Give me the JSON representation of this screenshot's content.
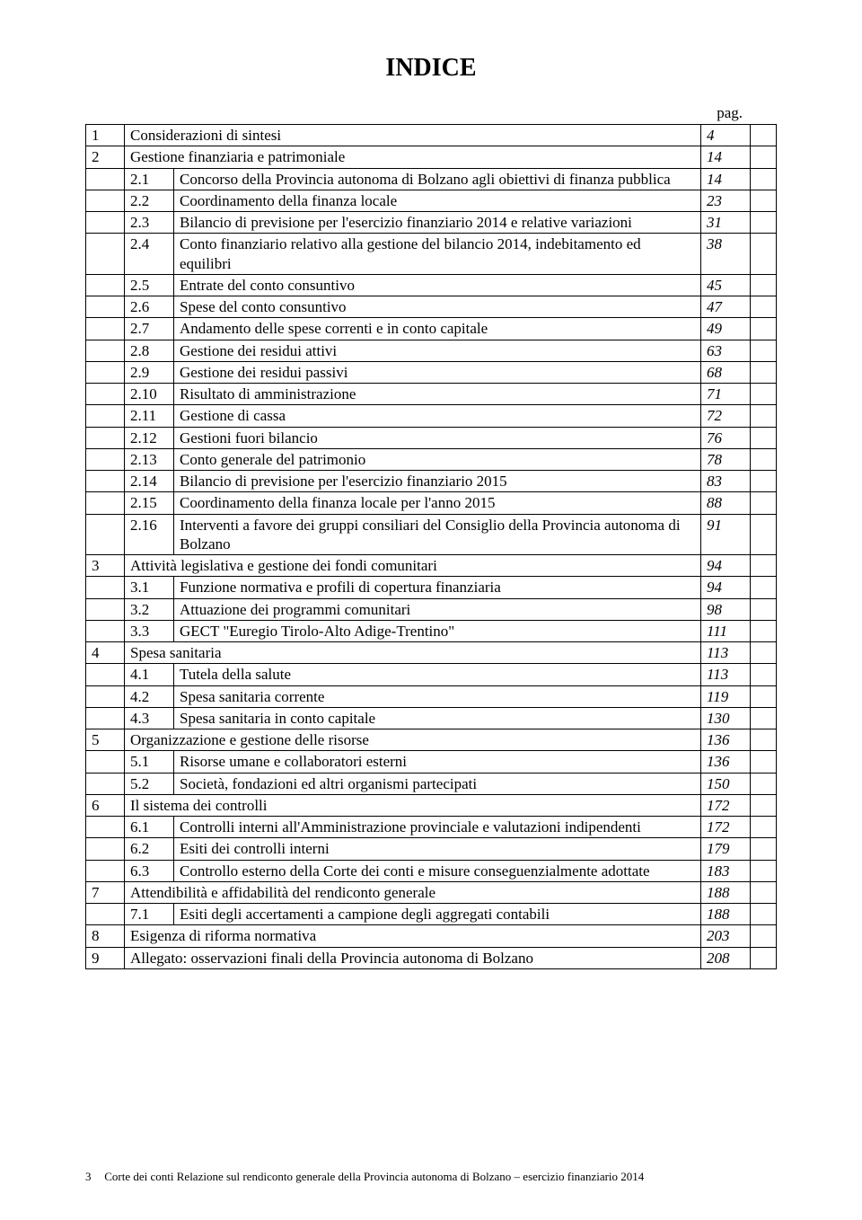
{
  "title": "INDICE",
  "pag_label": "pag.",
  "footer": {
    "page_number": "3",
    "text": "Corte dei conti   Relazione sul rendiconto generale della Provincia autonoma di Bolzano – esercizio finanziario 2014"
  },
  "rows": [
    {
      "type": "top",
      "n": "1",
      "label": "Considerazioni di sintesi",
      "page": "4"
    },
    {
      "type": "top",
      "n": "2",
      "label": "Gestione finanziaria e patrimoniale",
      "page": "14"
    },
    {
      "type": "sub",
      "n": "2.1",
      "label": "Concorso della Provincia autonoma di Bolzano agli obiettivi di finanza pubblica",
      "page": "14"
    },
    {
      "type": "sub",
      "n": "2.2",
      "label": "Coordinamento della finanza locale",
      "page": "23"
    },
    {
      "type": "sub",
      "n": "2.3",
      "label": "Bilancio di previsione per l'esercizio finanziario 2014 e relative variazioni",
      "page": "31"
    },
    {
      "type": "sub",
      "n": "2.4",
      "label": "Conto finanziario relativo alla gestione del bilancio 2014, indebitamento ed equilibri",
      "page": "38"
    },
    {
      "type": "sub",
      "n": "2.5",
      "label": "Entrate del conto consuntivo",
      "page": "45"
    },
    {
      "type": "sub",
      "n": "2.6",
      "label": "Spese del conto consuntivo",
      "page": "47"
    },
    {
      "type": "sub",
      "n": "2.7",
      "label": "Andamento delle spese correnti e in conto capitale",
      "page": "49"
    },
    {
      "type": "sub",
      "n": "2.8",
      "label": "Gestione dei residui attivi",
      "page": "63"
    },
    {
      "type": "sub",
      "n": "2.9",
      "label": "Gestione dei residui passivi",
      "page": "68"
    },
    {
      "type": "sub",
      "n": "2.10",
      "label": "Risultato di amministrazione",
      "page": "71"
    },
    {
      "type": "sub",
      "n": "2.11",
      "label": "Gestione di cassa",
      "page": "72"
    },
    {
      "type": "sub",
      "n": "2.12",
      "label": "Gestioni fuori bilancio",
      "page": "76"
    },
    {
      "type": "sub",
      "n": "2.13",
      "label": "Conto generale del patrimonio",
      "page": "78"
    },
    {
      "type": "sub",
      "n": "2.14",
      "label": "Bilancio di previsione per l'esercizio finanziario 2015",
      "page": "83"
    },
    {
      "type": "sub",
      "n": "2.15",
      "label": "Coordinamento della finanza locale  per l'anno 2015",
      "page": "88"
    },
    {
      "type": "sub",
      "n": "2.16",
      "label": "Interventi a favore dei gruppi consiliari del Consiglio della Provincia autonoma di Bolzano",
      "page": "91"
    },
    {
      "type": "top",
      "n": "3",
      "label": "Attività legislativa e gestione dei fondi comunitari",
      "page": "94"
    },
    {
      "type": "sub",
      "n": "3.1",
      "label": "Funzione normativa e profili di copertura finanziaria",
      "page": "94"
    },
    {
      "type": "sub",
      "n": "3.2",
      "label": "Attuazione dei programmi comunitari",
      "page": "98"
    },
    {
      "type": "sub",
      "n": "3.3",
      "label": "GECT \"Euregio Tirolo-Alto Adige-Trentino\"",
      "page": "111"
    },
    {
      "type": "top",
      "n": "4",
      "label": "Spesa sanitaria",
      "page": "113"
    },
    {
      "type": "sub",
      "n": "4.1",
      "label": "Tutela della salute",
      "page": "113"
    },
    {
      "type": "sub",
      "n": "4.2",
      "label": "Spesa sanitaria corrente",
      "page": "119"
    },
    {
      "type": "sub",
      "n": "4.3",
      "label": "Spesa sanitaria in conto capitale",
      "page": "130"
    },
    {
      "type": "top",
      "n": "5",
      "label": "Organizzazione e gestione delle risorse",
      "page": "136"
    },
    {
      "type": "sub",
      "n": "5.1",
      "label": "Risorse umane e collaboratori esterni",
      "page": "136"
    },
    {
      "type": "sub",
      "n": "5.2",
      "label": "Società, fondazioni ed altri organismi partecipati",
      "page": "150"
    },
    {
      "type": "top",
      "n": "6",
      "label": "Il sistema dei controlli",
      "page": "172"
    },
    {
      "type": "sub",
      "n": "6.1",
      "label": "Controlli interni all'Amministrazione provinciale e valutazioni indipendenti",
      "page": "172"
    },
    {
      "type": "sub",
      "n": "6.2",
      "label": "Esiti dei controlli interni",
      "page": "179"
    },
    {
      "type": "sub",
      "n": "6.3",
      "label": "Controllo esterno della Corte dei conti e misure conseguenzialmente adottate",
      "page": "183"
    },
    {
      "type": "top",
      "n": "7",
      "label": "Attendibilità e affidabilità del rendiconto generale",
      "page": "188"
    },
    {
      "type": "sub",
      "n": "7.1",
      "label": "Esiti degli accertamenti a campione degli aggregati contabili",
      "page": "188"
    },
    {
      "type": "top",
      "n": "8",
      "label": "Esigenza di riforma normativa",
      "page": "203"
    },
    {
      "type": "top",
      "n": "9",
      "label": "Allegato: osservazioni finali della Provincia autonoma di Bolzano",
      "page": "208"
    }
  ]
}
